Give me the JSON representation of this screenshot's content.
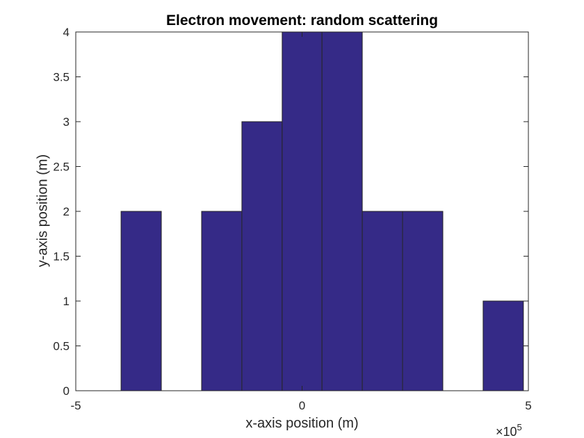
{
  "chart_data": {
    "type": "bar",
    "title": "Electron movement: random scattering",
    "xlabel": "x-axis position (m)",
    "ylabel": "y-axis position (m)",
    "x_exponent_base": "×10",
    "x_exponent_power": "5",
    "xlim": [
      -5,
      5
    ],
    "ylim": [
      0,
      4
    ],
    "x_scale_note_value": 100000,
    "bin_edges": [
      -4.0,
      -3.11,
      -2.22,
      -1.33,
      -0.44,
      0.44,
      1.33,
      2.22,
      3.11,
      4.0,
      4.89
    ],
    "bin_edges_raw_scale": "x10^5",
    "values": [
      2,
      0,
      2,
      3,
      4,
      4,
      2,
      2,
      0,
      1
    ],
    "x_ticks": [
      -5,
      0,
      5
    ],
    "x_tick_labels": [
      "-5",
      "0",
      "5"
    ],
    "y_ticks": [
      0,
      0.5,
      1,
      1.5,
      2,
      2.5,
      3,
      3.5,
      4
    ],
    "y_tick_labels": [
      "0",
      "0.5",
      "1",
      "1.5",
      "2",
      "2.5",
      "3",
      "3.5",
      "4"
    ],
    "grid": false,
    "bar_color": "#352A87",
    "edge_color": "#262626"
  }
}
